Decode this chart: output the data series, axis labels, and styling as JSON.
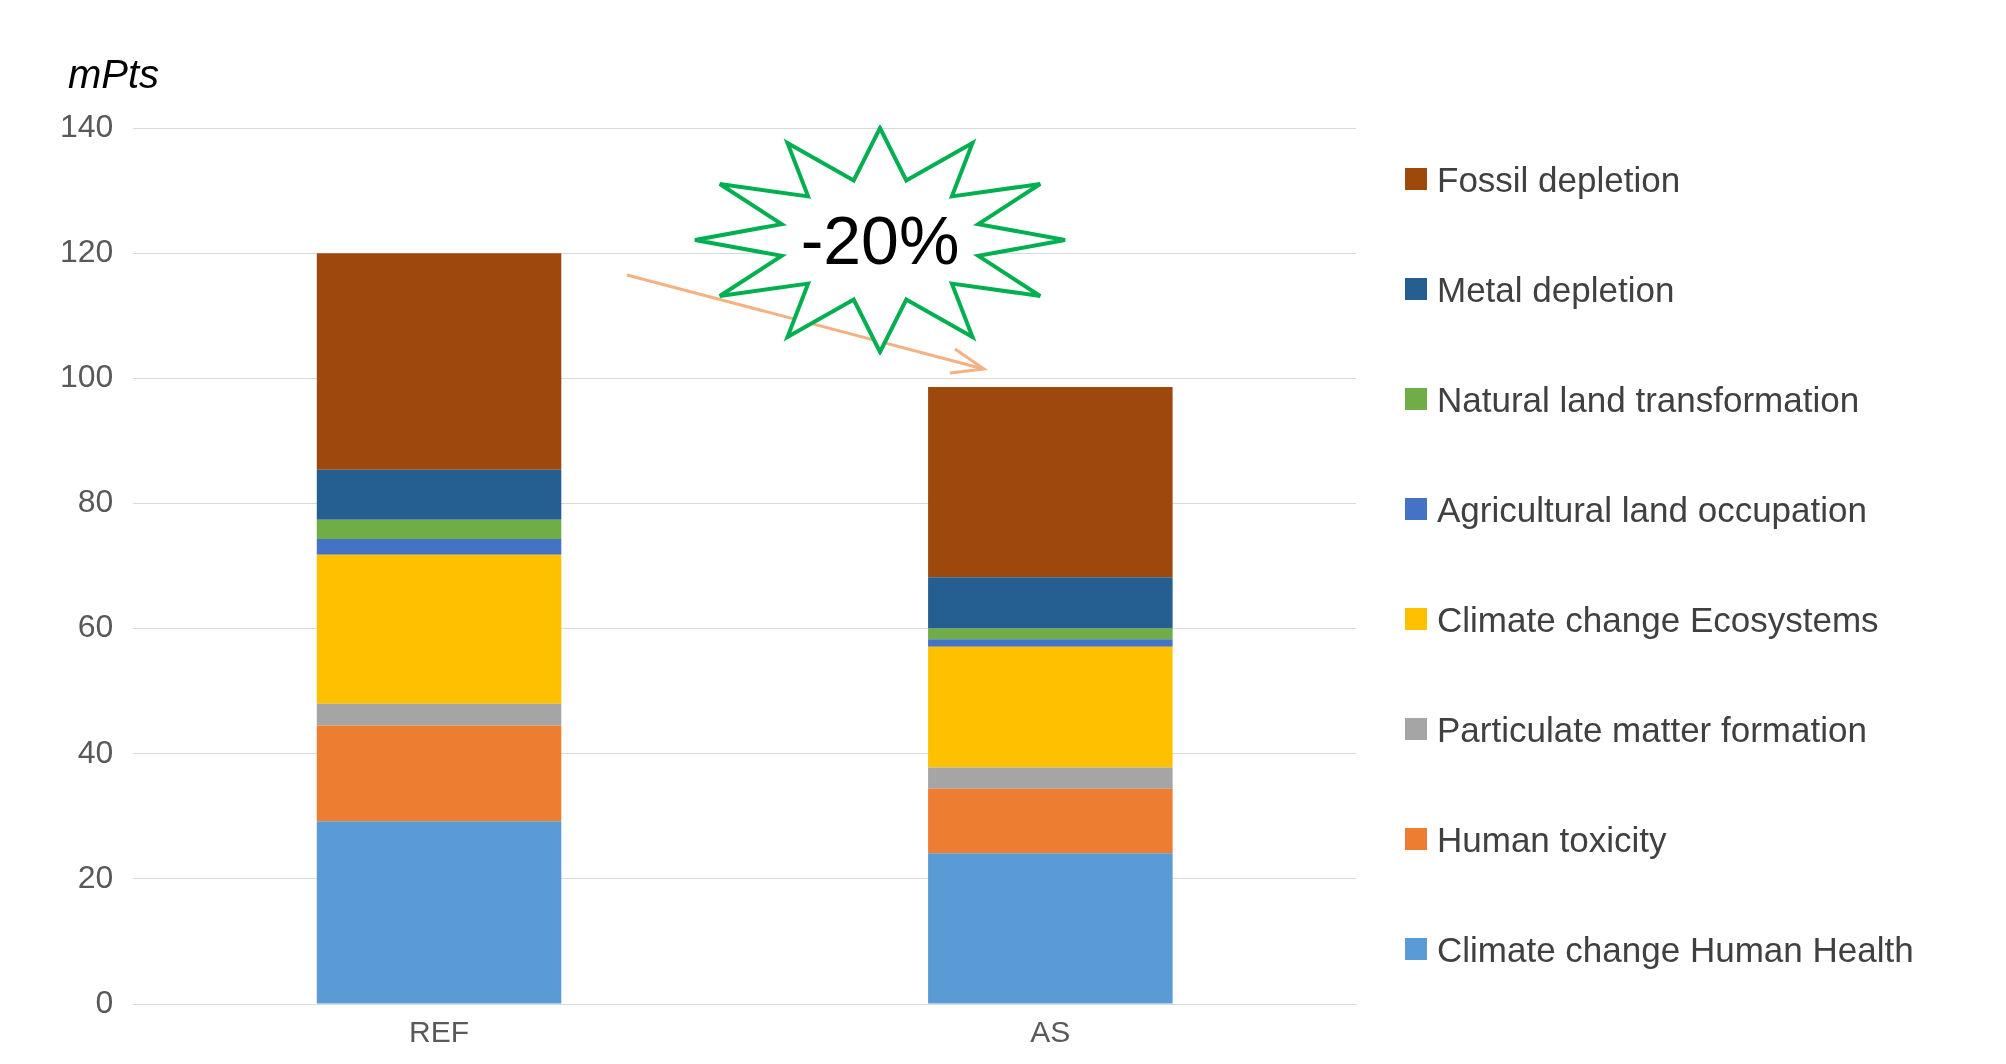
{
  "chart_data": {
    "type": "bar",
    "stacked": true,
    "ylabel": "mPts",
    "categories": [
      "REF",
      "AS"
    ],
    "series": [
      {
        "name": "Climate change Human Health",
        "color": "#5b9bd5",
        "values": [
          29.2,
          24.1
        ]
      },
      {
        "name": "Human toxicity",
        "color": "#ed7d31",
        "values": [
          15.3,
          10.3
        ]
      },
      {
        "name": "Particulate matter formation",
        "color": "#a5a5a5",
        "values": [
          3.5,
          3.4
        ]
      },
      {
        "name": "Climate change Ecosystems",
        "color": "#ffc000",
        "values": [
          23.8,
          19.3
        ]
      },
      {
        "name": "Agricultural land occupation",
        "color": "#4472c4",
        "values": [
          2.5,
          1.2
        ]
      },
      {
        "name": "Natural land transformation",
        "color": "#70ad47",
        "values": [
          3.1,
          1.7
        ]
      },
      {
        "name": "Metal depletion",
        "color": "#255e91",
        "values": [
          8.0,
          8.2
        ]
      },
      {
        "name": "Fossil depletion",
        "color": "#9e480e",
        "values": [
          34.6,
          30.4
        ]
      }
    ],
    "ylim": [
      0,
      140
    ],
    "yticks": [
      0,
      20,
      40,
      60,
      80,
      100,
      120,
      140
    ],
    "grid": "y",
    "legend": "right",
    "annotations": [
      "-20%"
    ]
  }
}
